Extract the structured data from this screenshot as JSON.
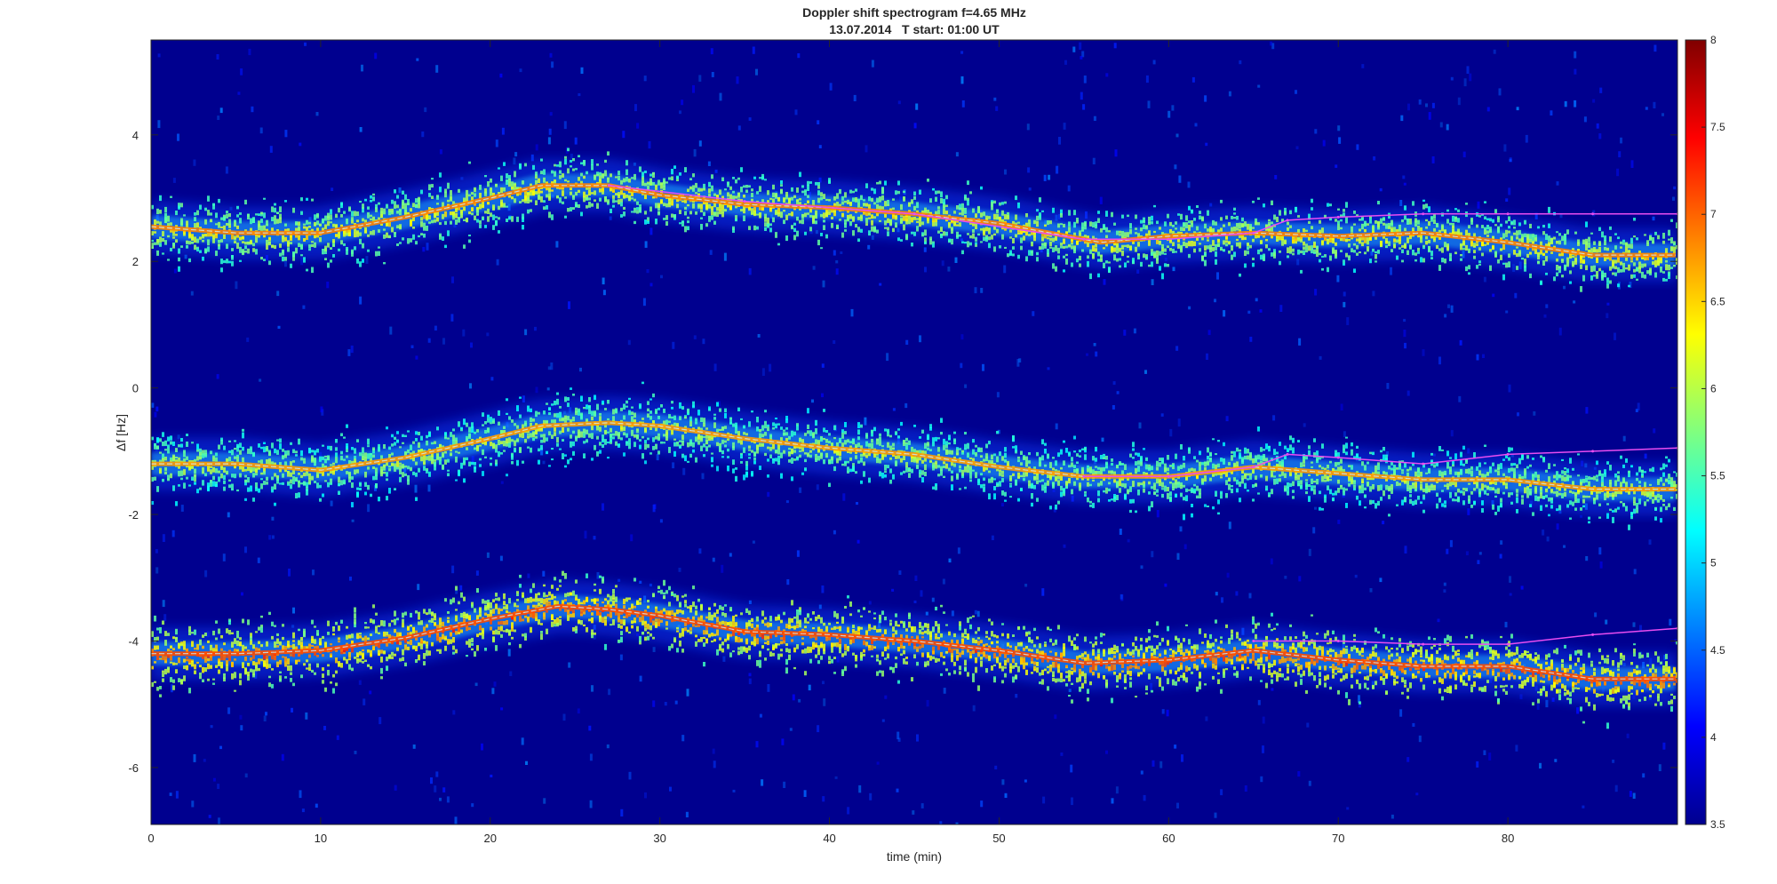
{
  "chart_data": {
    "type": "heatmap",
    "title": "Doppler shift spectrogram f=4.65 MHz",
    "subtitle": "13.07.2014   T start: 01:00 UT",
    "xlabel": "time (min)",
    "ylabel": "Δf [Hz]",
    "xlim": [
      0,
      90
    ],
    "ylim": [
      -6.9,
      5.5
    ],
    "x_ticks": [
      0,
      10,
      20,
      30,
      40,
      50,
      60,
      70,
      80
    ],
    "y_ticks": [
      4,
      2,
      0,
      -2,
      -4,
      -6
    ],
    "colorbar": {
      "colormap": "jet",
      "range": [
        3.5,
        8
      ],
      "ticks": [
        3.5,
        4,
        4.5,
        5,
        5.5,
        6,
        6.5,
        7,
        7.5,
        8
      ]
    },
    "grid": false,
    "background_color": "#00008f",
    "traces": [
      {
        "name": "upper",
        "intensity": 0.85,
        "x": [
          0,
          5,
          10,
          15,
          20,
          23,
          27,
          30,
          35,
          40,
          45,
          50,
          55,
          56,
          60,
          65,
          70,
          75,
          80,
          85,
          90
        ],
        "y": [
          2.55,
          2.45,
          2.45,
          2.7,
          3.0,
          3.2,
          3.2,
          3.05,
          2.9,
          2.85,
          2.75,
          2.6,
          2.35,
          2.3,
          2.4,
          2.45,
          2.4,
          2.45,
          2.3,
          2.1,
          2.1
        ]
      },
      {
        "name": "middle",
        "intensity": 0.78,
        "x": [
          0,
          5,
          10,
          15,
          20,
          23,
          27,
          30,
          35,
          40,
          45,
          50,
          55,
          60,
          65,
          70,
          75,
          80,
          85,
          90
        ],
        "y": [
          -1.2,
          -1.2,
          -1.3,
          -1.1,
          -0.8,
          -0.6,
          -0.55,
          -0.6,
          -0.8,
          -0.95,
          -1.05,
          -1.25,
          -1.4,
          -1.4,
          -1.25,
          -1.35,
          -1.45,
          -1.45,
          -1.6,
          -1.6
        ]
      },
      {
        "name": "lower",
        "intensity": 1.0,
        "x": [
          0,
          5,
          10,
          15,
          20,
          24,
          27,
          30,
          35,
          40,
          45,
          50,
          55,
          60,
          65,
          70,
          75,
          80,
          85,
          90
        ],
        "y": [
          -4.2,
          -4.2,
          -4.15,
          -3.95,
          -3.65,
          -3.45,
          -3.5,
          -3.6,
          -3.85,
          -3.9,
          -4.0,
          -4.15,
          -4.35,
          -4.3,
          -4.15,
          -4.3,
          -4.4,
          -4.4,
          -4.6,
          -4.6
        ]
      }
    ],
    "overlay_lines": [
      {
        "color": "#e94cf0",
        "x": [
          27,
          35,
          45,
          55,
          60,
          65,
          67,
          70,
          75,
          80,
          85,
          90
        ],
        "y": [
          3.2,
          2.95,
          2.75,
          2.35,
          2.35,
          2.45,
          2.65,
          2.7,
          2.75,
          2.75,
          2.75,
          2.75
        ]
      },
      {
        "color": "#e94cf0",
        "x": [
          55,
          60,
          65,
          67,
          70,
          75,
          80,
          85,
          90
        ],
        "y": [
          -1.4,
          -1.4,
          -1.25,
          -1.05,
          -1.1,
          -1.2,
          -1.05,
          -1.0,
          -0.95
        ]
      },
      {
        "color": "#e94cf0",
        "x": [
          65,
          70,
          75,
          80,
          85,
          90
        ],
        "y": [
          -4.0,
          -4.0,
          -4.05,
          -4.05,
          -3.9,
          -3.8
        ]
      }
    ]
  }
}
